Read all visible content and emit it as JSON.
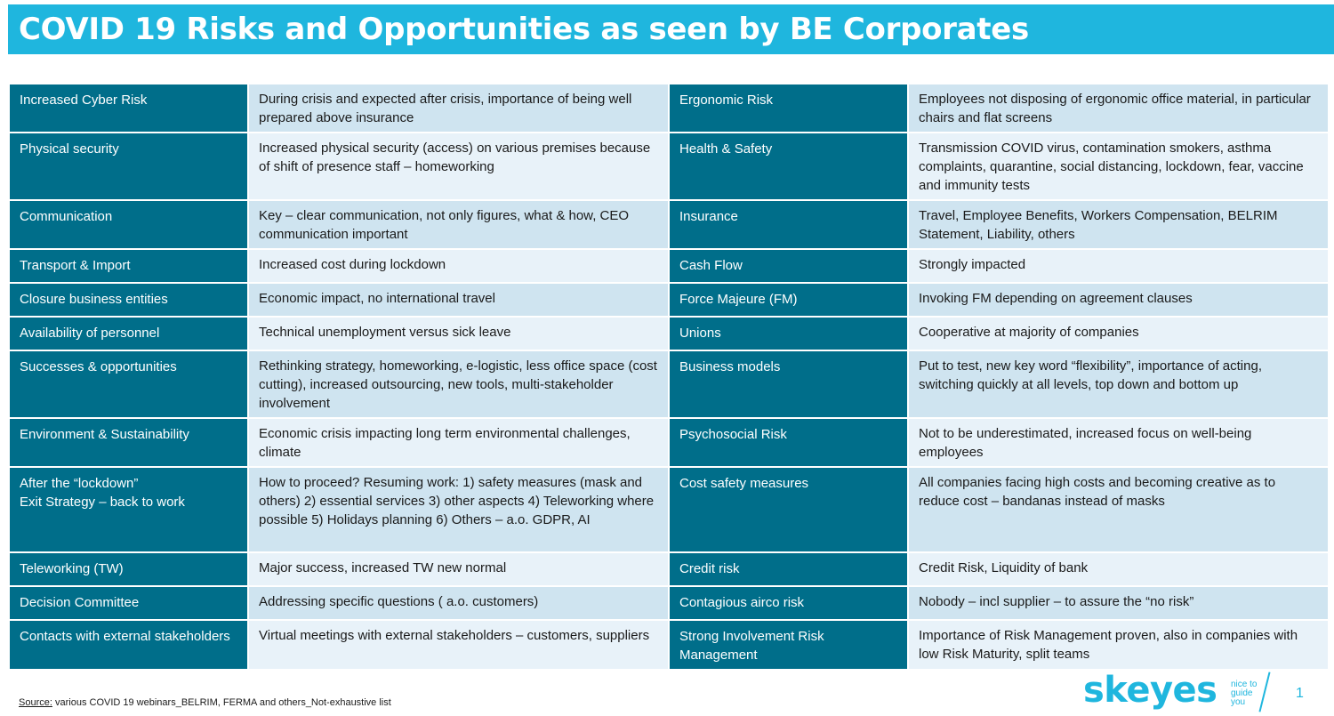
{
  "title": "COVID 19 Risks and Opportunities as seen by BE Corporates",
  "rows": [
    {
      "l1": "Increased Cyber Risk",
      "d1": "During crisis and expected after crisis, importance of being well prepared above insurance",
      "l2": "Ergonomic Risk",
      "d2": "Employees not disposing of ergonomic office material, in particular chairs and flat screens"
    },
    {
      "l1": "Physical security",
      "d1": "Increased physical security (access) on various premises because of shift of presence staff – homeworking",
      "l2": "Health & Safety",
      "d2": "Transmission COVID virus, contamination smokers, asthma complaints, quarantine, social distancing, lockdown, fear, vaccine and immunity tests"
    },
    {
      "l1": "Communication",
      "d1": "Key – clear communication, not only figures, what & how, CEO communication important",
      "l2": "Insurance",
      "d2": "Travel, Employee Benefits, Workers Compensation, BELRIM Statement, Liability, others"
    },
    {
      "l1": "Transport & Import",
      "d1": "Increased cost during lockdown",
      "l2": "Cash Flow",
      "d2": "Strongly impacted"
    },
    {
      "l1": "Closure business entities",
      "d1": "Economic impact, no international travel",
      "l2": "Force Majeure (FM)",
      "d2": "Invoking FM depending on agreement clauses"
    },
    {
      "l1": "Availability of personnel",
      "d1": "Technical unemployment versus sick leave",
      "l2": "Unions",
      "d2": "Cooperative at majority of companies"
    },
    {
      "l1": "Successes & opportunities",
      "d1": "Rethinking strategy, homeworking, e-logistic, less office space (cost cutting), increased outsourcing, new tools, multi-stakeholder involvement",
      "l2": "Business models",
      "d2": "Put to test, new key word “flexibility”, importance of acting, switching quickly at all levels, top down and bottom up"
    },
    {
      "l1": "Environment & Sustainability",
      "d1": "Economic crisis impacting long term environmental challenges, climate",
      "l2": "Psychosocial Risk",
      "d2": "Not to be underestimated, increased focus on well-being employees"
    },
    {
      "l1": "After the “lockdown”\nExit Strategy – back to work",
      "d1": "How to proceed? Resuming work: 1) safety measures (mask and others) 2) essential services 3) other aspects 4) Teleworking where possible 5) Holidays planning 6) Others – a.o. GDPR, AI",
      "l2": "Cost safety measures",
      "d2": "All companies facing high costs and becoming creative as to reduce cost – bandanas instead of masks"
    },
    {
      "l1": "Teleworking (TW)",
      "d1": "Major success, increased TW new normal",
      "l2": "Credit risk",
      "d2": "Credit Risk, Liquidity of bank"
    },
    {
      "l1": "Decision Committee",
      "d1": "Addressing specific questions ( a.o. customers)",
      "l2": "Contagious airco risk",
      "d2": "Nobody – incl supplier – to assure the “no risk”"
    },
    {
      "l1": "Contacts with external stakeholders",
      "d1": "Virtual meetings with external stakeholders – customers, suppliers",
      "l2": "Strong Involvement Risk Management",
      "d2": "Importance of Risk Management proven, also in companies with low Risk Maturity, split teams"
    }
  ],
  "footer": {
    "source_label": "Source:",
    "source_text": " various COVID 19 webinars_BELRIM, FERMA and others_Not-exhaustive list"
  },
  "logo": {
    "word": "skeyes",
    "tagline": [
      "nice to",
      "guide",
      "you"
    ]
  },
  "page_number": "1",
  "colors": {
    "title_bar": "#1fb6de",
    "label_cell": "#006e8a",
    "text_cell_odd": "#cfe4f0",
    "text_cell_even": "#e8f2f9",
    "brand": "#1fb6de"
  }
}
